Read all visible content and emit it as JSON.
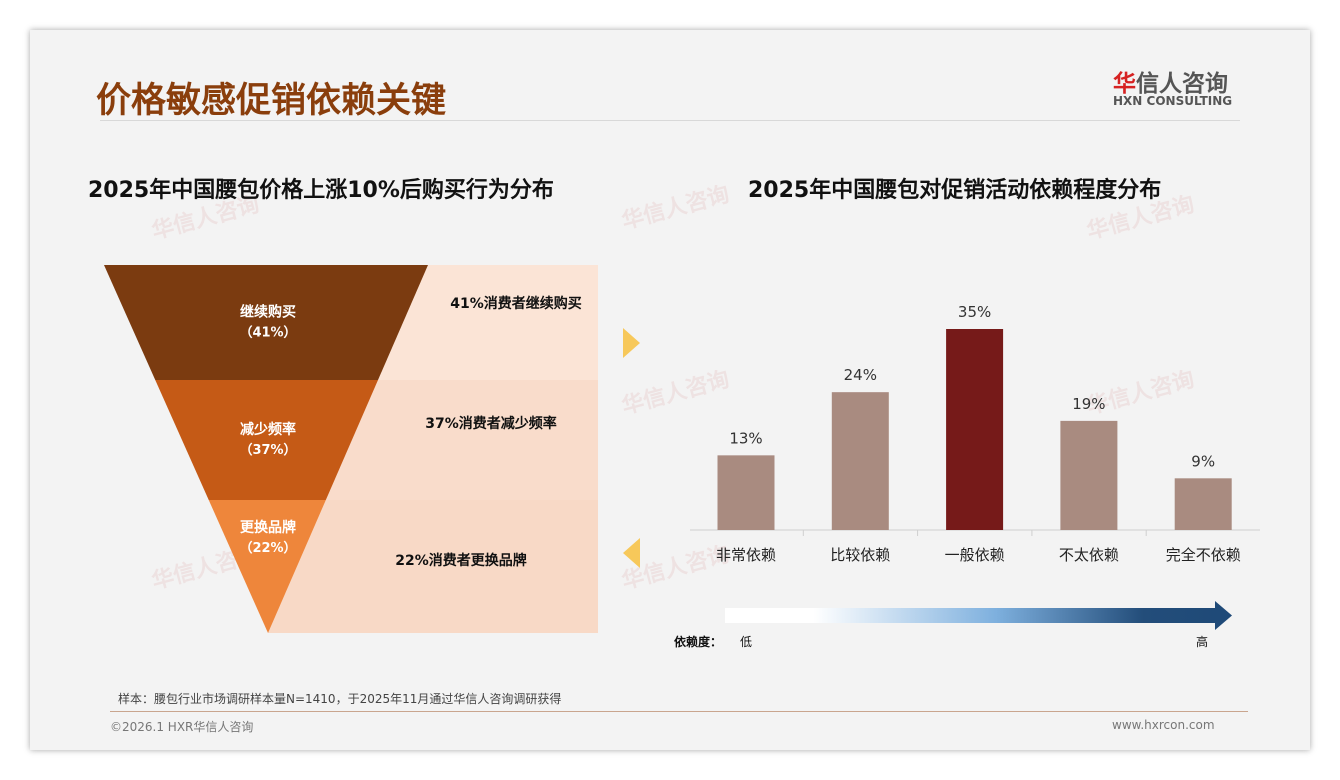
{
  "header": {
    "title": "价格敏感促销依赖关键",
    "logo_cn_red": "华",
    "logo_cn": "信人咨询",
    "logo_en": "HXN CONSULTING"
  },
  "chart_data": [
    {
      "type": "funnel",
      "title": "2025年中国腰包价格上涨10%后购买行为分布",
      "stages": [
        {
          "label": "继续购买",
          "pct_label": "（41%）",
          "value": 41,
          "desc": "41%消费者继续购买",
          "color": "#7b3b10"
        },
        {
          "label": "减少频率",
          "pct_label": "（37%）",
          "value": 37,
          "desc": "37%消费者减少频率",
          "color": "#c55a16"
        },
        {
          "label": "更换品牌",
          "pct_label": "（22%）",
          "value": 22,
          "desc": "22%消费者更换品牌",
          "color": "#ee863b"
        }
      ]
    },
    {
      "type": "bar",
      "title": "2025年中国腰包对促销活动依赖程度分布",
      "categories": [
        "非常依赖",
        "比较依赖",
        "一般依赖",
        "不太依赖",
        "完全不依赖"
      ],
      "values": [
        13,
        24,
        35,
        19,
        9
      ],
      "labels": [
        "13%",
        "24%",
        "35%",
        "19%",
        "9%"
      ],
      "colors": [
        "#a98b80",
        "#a98b80",
        "#761a19",
        "#a98b80",
        "#a98b80"
      ],
      "ylim": [
        0,
        35
      ],
      "scale": {
        "label": "依赖度：",
        "low": "低",
        "high": "高"
      }
    }
  ],
  "footer": {
    "note": "样本：腰包行业市场调研样本量N=1410，于2025年11月通过华信人咨询调研获得",
    "copyright": "©2026.1 HXR华信人咨询",
    "url": "www.hxrcon.com"
  }
}
